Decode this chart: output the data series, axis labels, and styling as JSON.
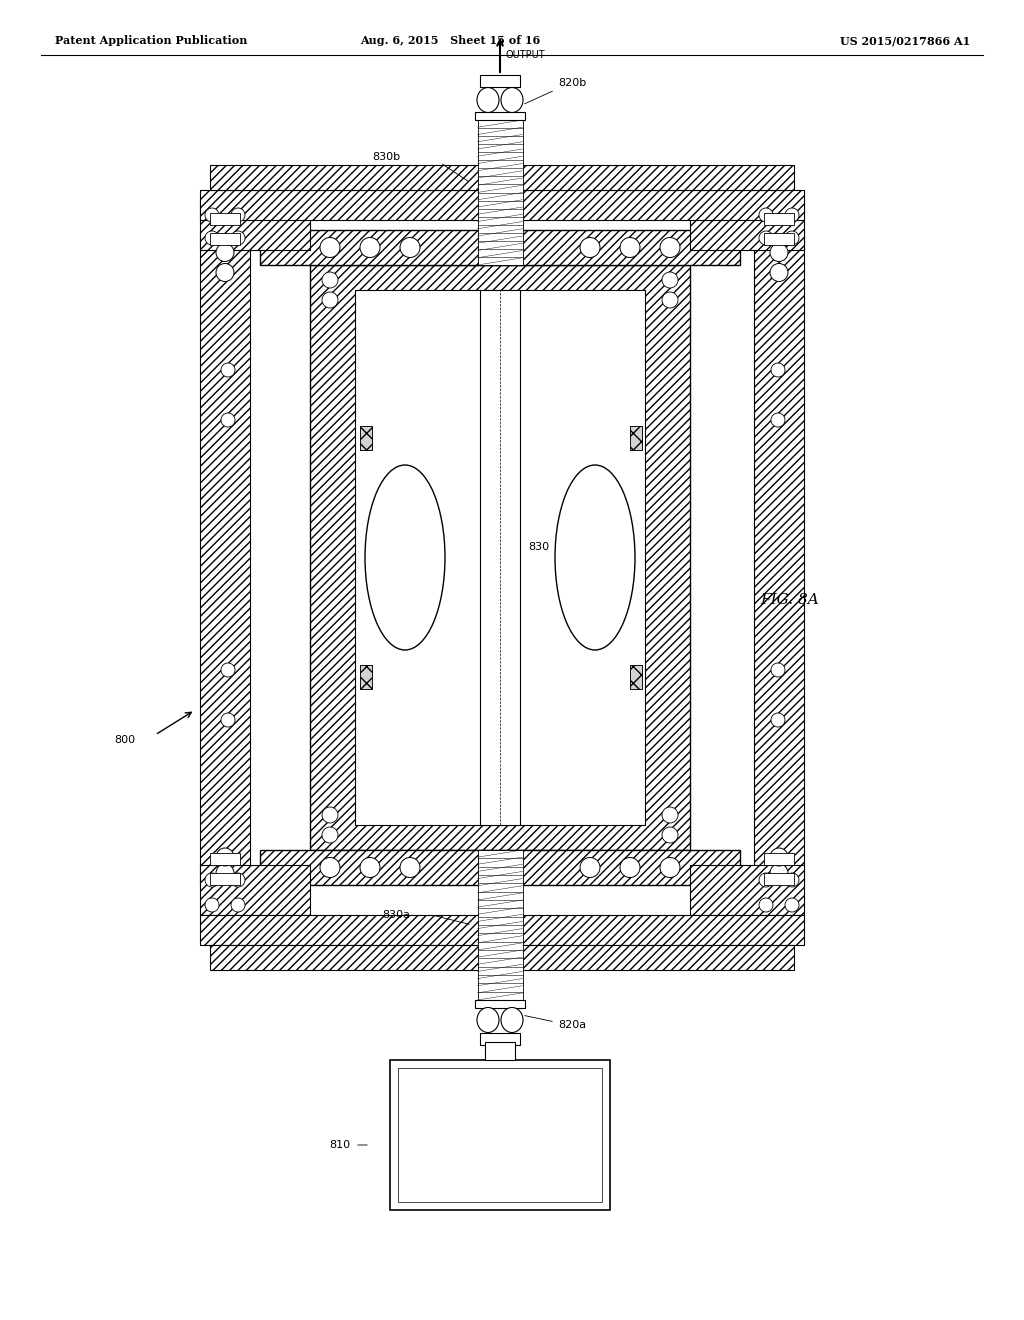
{
  "header_left": "Patent Application Publication",
  "header_center": "Aug. 6, 2015   Sheet 15 of 16",
  "header_right": "US 2015/0217866 A1",
  "fig_label": "FIG. 8A",
  "label_800": "800",
  "label_810": "810",
  "label_820a": "820a",
  "label_820b": "820b",
  "label_830": "830",
  "label_830a": "830a",
  "label_830b": "830b",
  "output_text": "OUTPUT",
  "bg_color": "#ffffff",
  "line_color": "#000000",
  "hatch_color": "#000000",
  "page_width": 10.24,
  "page_height": 13.2
}
